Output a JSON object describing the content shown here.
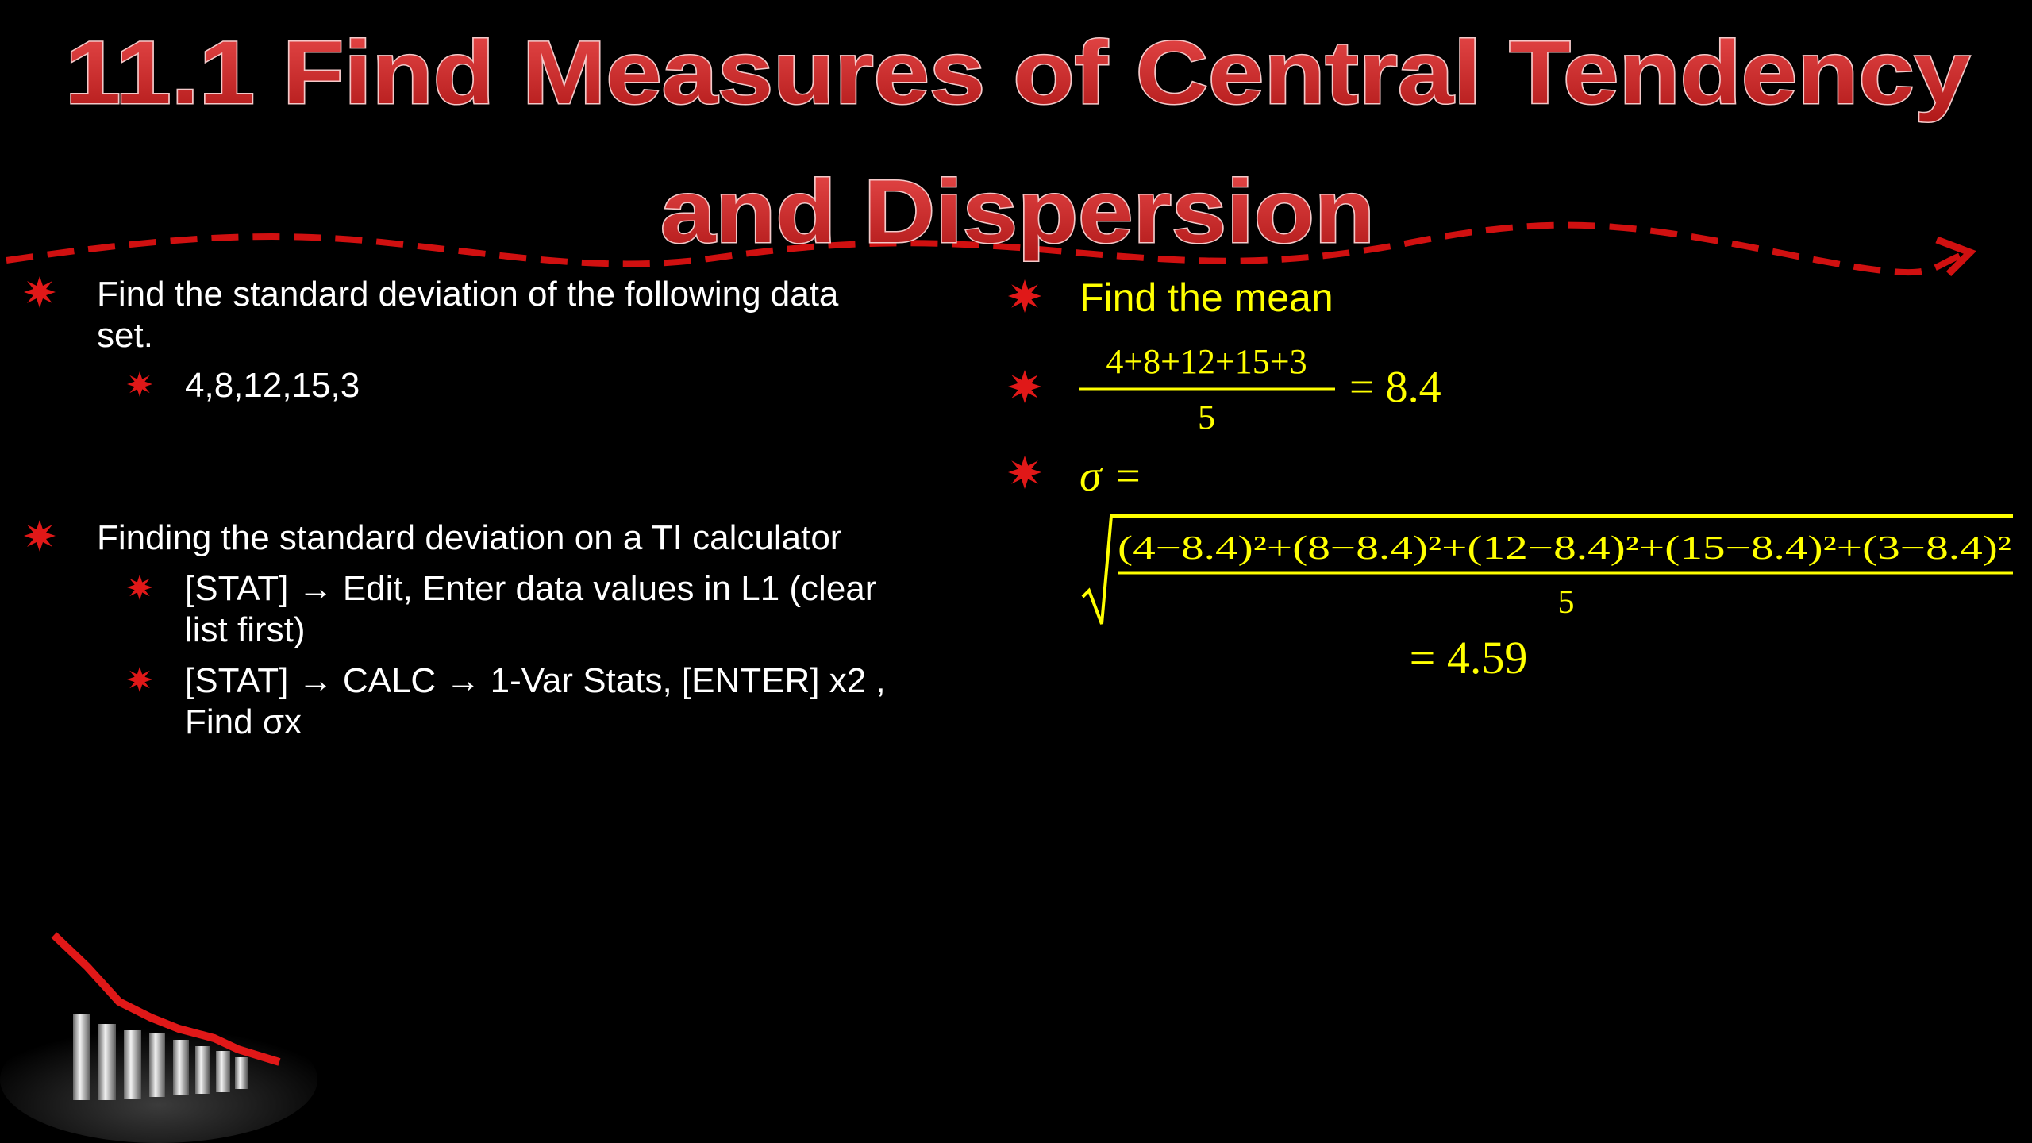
{
  "title": {
    "lines": [
      "11.1 Find Measures of Central Tendency",
      "and Dispersion"
    ]
  },
  "left": {
    "bullets": [
      {
        "lines": [
          "Find the standard deviation of the following data",
          "set."
        ],
        "subbullets": [
          {
            "lines": [
              "4,8,12,15,3"
            ]
          }
        ]
      },
      {
        "lines": [
          "Finding the standard deviation on a TI calculator"
        ],
        "subbullets": [
          {
            "lines": [
              "[STAT] → Edit, Enter data values in L1 (clear",
              "list first)"
            ]
          },
          {
            "lines": [
              "[STAT] → CALC → 1-Var Stats, [ENTER] x2 ,",
              "Find σx"
            ]
          }
        ]
      }
    ]
  },
  "right": {
    "heading": "Find the mean",
    "mean": {
      "numerator": "4+8+12+15+3",
      "denominator": "5",
      "result": "= 8.4"
    },
    "sigma": {
      "label": "σ =",
      "numerator": "(4−8.4)²+(8−8.4)²+(12−8.4)²+(15−8.4)²+(3−8.4)²",
      "denominator": "5",
      "result": "= 4.59"
    }
  }
}
